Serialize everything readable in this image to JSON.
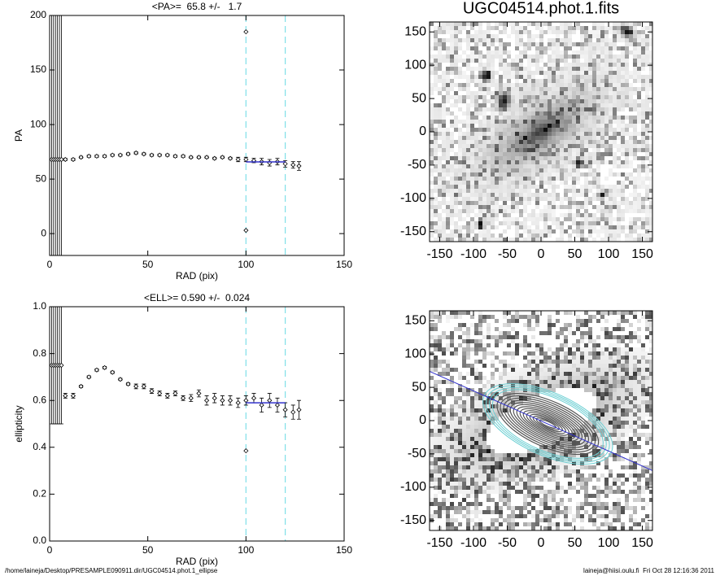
{
  "chart_data": [
    {
      "type": "scatter",
      "title": "<PA>=  65.8 +/-   1.7",
      "xlabel": "RAD (pix)",
      "ylabel": "PA",
      "xlim": [
        0,
        150
      ],
      "ylim": [
        -20,
        200
      ],
      "xticks": [
        0,
        50,
        100,
        150
      ],
      "yticks": [
        0,
        50,
        100,
        150,
        200
      ],
      "vlines": [
        100,
        120
      ],
      "vline_color": "#7fe0e8",
      "series": [
        {
          "color": "#000000",
          "x": [
            1,
            2,
            3,
            4,
            5,
            6,
            8,
            12,
            16,
            20,
            24,
            28,
            32,
            36,
            40,
            44,
            48,
            52,
            56,
            60,
            64,
            68,
            72,
            76,
            80,
            84,
            88,
            92,
            96,
            100,
            104,
            108,
            112,
            116,
            120,
            124,
            127,
            100,
            100
          ],
          "values": [
            68,
            68,
            68,
            68,
            68,
            68,
            68,
            68,
            70,
            71,
            71,
            71,
            72,
            72,
            73,
            74,
            73,
            72,
            72,
            72,
            71,
            71,
            70,
            70,
            70,
            69,
            70,
            69,
            68,
            68,
            67,
            66,
            65,
            66,
            64,
            63,
            62,
            185,
            3
          ],
          "errors": [
            150,
            150,
            150,
            150,
            150,
            150,
            1,
            1,
            1,
            1,
            1,
            1,
            1,
            1,
            1,
            1,
            1,
            1,
            1,
            1,
            1,
            1,
            1,
            1,
            1,
            1,
            1,
            1,
            2,
            2,
            2,
            3,
            3,
            3,
            3,
            3,
            4,
            0,
            0
          ]
        },
        {
          "color": "#3333cc",
          "style": "line",
          "x": [
            100,
            120
          ],
          "values": [
            65.8,
            65.8
          ]
        }
      ]
    },
    {
      "type": "image",
      "title": "UGC04514.phot.1.fits",
      "xlim": [
        -165,
        165
      ],
      "ylim": [
        -165,
        165
      ],
      "xticks": [
        -150,
        -100,
        -50,
        0,
        50,
        100,
        150
      ],
      "yticks": [
        -150,
        -100,
        -50,
        0,
        50,
        100,
        150
      ]
    },
    {
      "type": "scatter",
      "title": "<ELL>= 0.590 +/-  0.024",
      "xlabel": "RAD (pix)",
      "ylabel": "ellipticity",
      "xlim": [
        0,
        150
      ],
      "ylim": [
        0,
        1
      ],
      "xticks": [
        0,
        50,
        100,
        150
      ],
      "yticks": [
        {
          "value": 0,
          "label": "0.0"
        },
        0.2,
        0.4,
        0.6,
        0.8,
        {
          "value": 1,
          "label": "1.0"
        }
      ],
      "vlines": [
        100,
        120
      ],
      "vline_color": "#7fe0e8",
      "series": [
        {
          "color": "#000000",
          "x": [
            1,
            2,
            3,
            4,
            5,
            6,
            8,
            12,
            16,
            20,
            24,
            28,
            32,
            36,
            40,
            44,
            48,
            52,
            56,
            60,
            64,
            68,
            72,
            76,
            80,
            84,
            88,
            92,
            96,
            100,
            104,
            108,
            112,
            116,
            120,
            124,
            127,
            100
          ],
          "values": [
            0.75,
            0.75,
            0.75,
            0.75,
            0.75,
            0.75,
            0.62,
            0.62,
            0.66,
            0.7,
            0.73,
            0.74,
            0.72,
            0.69,
            0.67,
            0.66,
            0.66,
            0.64,
            0.63,
            0.62,
            0.63,
            0.61,
            0.61,
            0.63,
            0.6,
            0.61,
            0.6,
            0.6,
            0.59,
            0.6,
            0.61,
            0.58,
            0.6,
            0.58,
            0.56,
            0.55,
            0.56,
            0.385
          ],
          "errors": [
            0.25,
            0.25,
            0.25,
            0.25,
            0.25,
            0.25,
            0.01,
            0.01,
            0.005,
            0.005,
            0.005,
            0.005,
            0.005,
            0.005,
            0.005,
            0.01,
            0.01,
            0.01,
            0.01,
            0.01,
            0.01,
            0.01,
            0.015,
            0.015,
            0.02,
            0.02,
            0.02,
            0.02,
            0.02,
            0.02,
            0.02,
            0.03,
            0.03,
            0.03,
            0.03,
            0.03,
            0.04,
            0
          ]
        },
        {
          "color": "#3333cc",
          "style": "line",
          "x": [
            100,
            120
          ],
          "values": [
            0.59,
            0.59
          ]
        }
      ]
    },
    {
      "type": "contour",
      "xlim": [
        -165,
        165
      ],
      "ylim": [
        -165,
        165
      ],
      "xticks": [
        -150,
        -100,
        -50,
        0,
        50,
        100,
        150
      ],
      "yticks": [
        -150,
        -100,
        -50,
        0,
        50,
        100,
        150
      ]
    }
  ],
  "footer": {
    "left": "/home/laineja/Desktop/PRESAMPLE090911.dir/UGC04514.phot.1_ellipse",
    "right": "laineja@hiisi.oulu.fi  Fri Oct 28 12:16:36 2011"
  }
}
